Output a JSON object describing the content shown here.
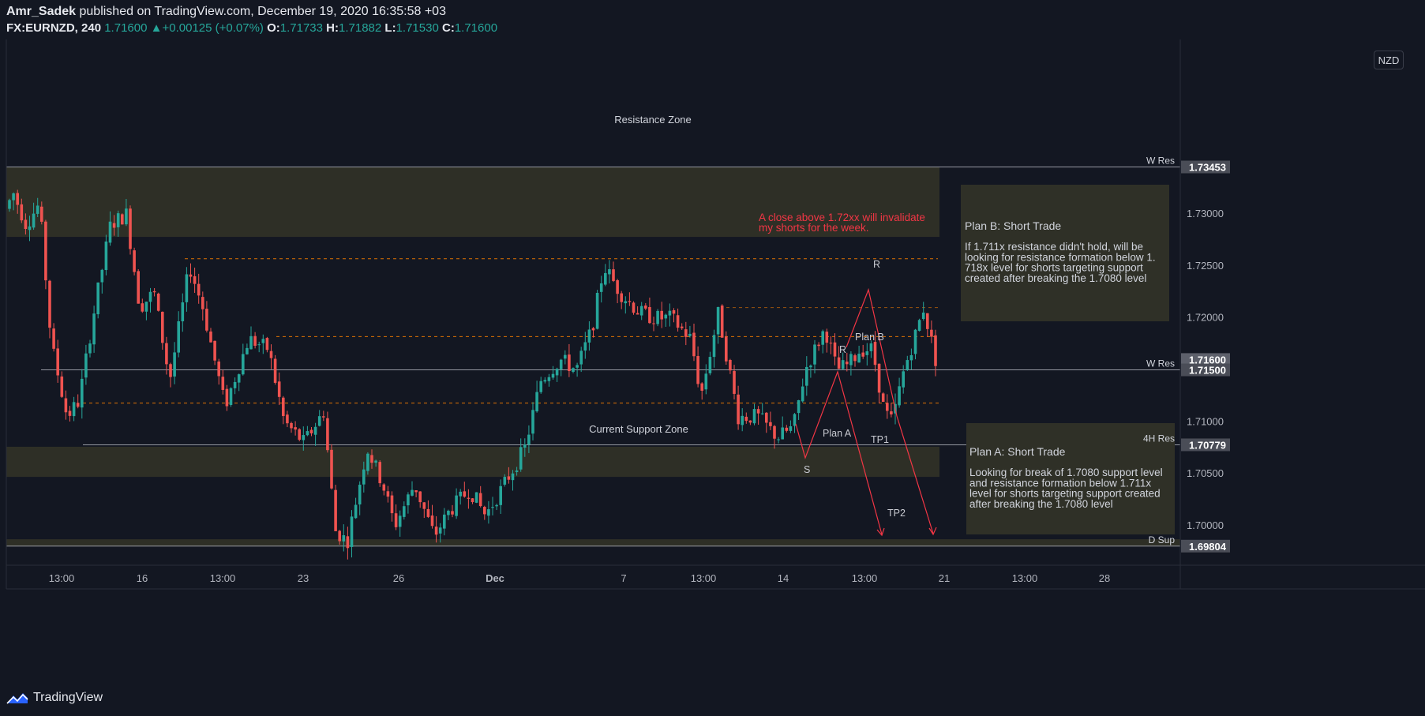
{
  "header": {
    "author": "Amr_Sadek",
    "published": "published on TradingView.com, December 19, 2020 16:35:58 +03",
    "symbol": "FX:EURNZD",
    "interval": "240",
    "last": "1.71600",
    "change": "+0.00125 (+0.07%)",
    "o_label": "O:",
    "o": "1.71733",
    "h_label": "H:",
    "h": "1.71882",
    "l_label": "L:",
    "l": "1.71530",
    "c_label": "C:",
    "c": "1.71600"
  },
  "currency_badge": "NZD",
  "footer": {
    "brand": "TradingView"
  },
  "colors": {
    "background": "#131722",
    "up": "#26a69a",
    "down": "#ef5350",
    "zone": "#2f3027",
    "annotation": "#f23645",
    "level_line": "#787b86",
    "dashed": "#f57c00"
  },
  "chart_data": {
    "type": "candlestick",
    "symbol": "FX:EURNZD",
    "ylim": [
      1.6962,
      1.7468
    ],
    "y_ticks": [
      "1.73000",
      "1.72500",
      "1.72000",
      "1.71000",
      "1.70500",
      "1.70000"
    ],
    "x_ticks": [
      "13:00",
      "16",
      "13:00",
      "23",
      "26",
      "Dec",
      "7",
      "13:00",
      "14",
      "13:00",
      "21",
      "13:00",
      "28"
    ],
    "price_labels": [
      {
        "value": "1.73453",
        "price": 1.73453,
        "highlight": false
      },
      {
        "value": "1.71600",
        "price": 1.716,
        "highlight": true
      },
      {
        "value": "1.71500",
        "price": 1.715,
        "highlight": false
      },
      {
        "value": "1.70779",
        "price": 1.70779,
        "highlight": false
      },
      {
        "value": "1.69804",
        "price": 1.69804,
        "highlight": false
      }
    ],
    "levels": [
      {
        "label": "W Res",
        "price": 1.73453
      },
      {
        "label": "W Res",
        "price": 1.715
      },
      {
        "label": "4H Res",
        "price": 1.70779
      },
      {
        "label": "D Sup",
        "price": 1.69804
      }
    ],
    "zones": [
      {
        "label": "Resistance Zone",
        "from": 1.7278,
        "to": 1.7345
      },
      {
        "label": "Current Support Zone",
        "from": 1.7047,
        "to": 1.7076
      },
      {
        "label": "",
        "from": 1.698,
        "to": 1.6987
      }
    ],
    "dashed_levels": [
      1.7257,
      1.7182,
      1.7118,
      1.721
    ],
    "annotations": {
      "warning": [
        "A close above 1.72xx will invalidate",
        "my shorts for the week."
      ],
      "plan_b_title": "Plan B: Short Trade",
      "plan_b_text": [
        "If 1.711x resistance didn't hold, will be",
        "looking for resistance formation below 1.",
        "718x level for shorts targeting support",
        "created after breaking the 1.7080 level"
      ],
      "plan_a_title": "Plan A: Short Trade",
      "plan_a_text": [
        "Looking for break of 1.7080 support level",
        "and resistance formation below 1.711x",
        "level for shorts targeting support created",
        "after breaking the 1.7080 level"
      ],
      "labels": [
        "Plan A",
        "Plan B",
        "S",
        "R",
        "R",
        "TP1",
        "TP2"
      ]
    }
  }
}
